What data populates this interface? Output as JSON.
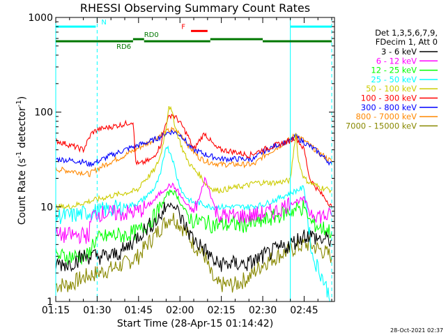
{
  "chart_data": {
    "type": "line",
    "title": "RHESSI Observing Summary Count Rates",
    "xlabel": "Start Time (28-Apr-15 01:14:42)",
    "ylabel_main": "Count Rate (s",
    "ylabel_sup1": "-1",
    "ylabel_mid": " detector",
    "ylabel_sup2": "-1",
    "ylabel_end": ")",
    "yscale": "log",
    "ylim": [
      1,
      1000
    ],
    "xlim_min": [
      0,
      101
    ],
    "y_ticks": [
      {
        "value": 1,
        "label": "1"
      },
      {
        "value": 10,
        "label": "10"
      },
      {
        "value": 100,
        "label": "100"
      },
      {
        "value": 1000,
        "label": "1000"
      }
    ],
    "x_ticks": [
      {
        "t": 0,
        "label": "01:15"
      },
      {
        "t": 15,
        "label": "01:30"
      },
      {
        "t": 30,
        "label": "01:45"
      },
      {
        "t": 45,
        "label": "02:00"
      },
      {
        "t": 60,
        "label": "02:15"
      },
      {
        "t": 75,
        "label": "02:30"
      },
      {
        "t": 90,
        "label": "02:45"
      }
    ],
    "legend_header": [
      "Det 1,3,5,6,7,9,",
      "FDecim 1, Att 0"
    ],
    "series": [
      {
        "name": "3 - 6 keV",
        "color": "#000000",
        "x": [
          0,
          5,
          10,
          15,
          20,
          25,
          30,
          33,
          36,
          38,
          40,
          42,
          44,
          46,
          48,
          50,
          52,
          54,
          56,
          58,
          60,
          65,
          70,
          75,
          80,
          85,
          90,
          92,
          96,
          100
        ],
        "y": [
          2.5,
          2.5,
          3,
          3,
          3,
          3.5,
          5,
          6,
          7,
          8,
          10,
          11,
          9,
          7,
          5.5,
          4.5,
          4,
          3.5,
          3,
          2.5,
          2.5,
          2.5,
          2.5,
          3,
          3.5,
          4,
          5,
          5,
          4.5,
          4.5
        ]
      },
      {
        "name": "6 - 12 keV",
        "color": "#ff00ff",
        "x": [
          0,
          12,
          13,
          15,
          20,
          25,
          30,
          33,
          36,
          38,
          40,
          42,
          44,
          46,
          48,
          50,
          52,
          54,
          56,
          58,
          60,
          65,
          70,
          75,
          80,
          85,
          90,
          92,
          96,
          100
        ],
        "y": [
          5,
          5,
          8,
          8.5,
          8.5,
          8.5,
          9,
          10,
          12,
          14,
          16,
          17,
          15,
          12,
          10,
          9,
          12,
          20,
          14,
          9,
          8,
          8,
          8,
          8.5,
          9,
          11,
          12,
          9,
          8,
          8
        ]
      },
      {
        "name": "12 - 25 keV",
        "color": "#00ff00",
        "x": [
          0,
          12,
          13,
          15,
          20,
          25,
          30,
          33,
          36,
          38,
          40,
          42,
          44,
          46,
          48,
          50,
          52,
          54,
          56,
          58,
          60,
          65,
          70,
          75,
          80,
          85,
          90,
          92,
          96,
          100
        ],
        "y": [
          3,
          3,
          4,
          4.5,
          5,
          5,
          5.5,
          6.5,
          8,
          10,
          13,
          15,
          13,
          10,
          8,
          7,
          7,
          7,
          6.5,
          6.5,
          6.5,
          6.5,
          6.5,
          7,
          8,
          9,
          10,
          7,
          6,
          5.5
        ]
      },
      {
        "name": "25 - 50 keV",
        "color": "#00ffff",
        "x": [
          0,
          5,
          10,
          15,
          20,
          25,
          30,
          33,
          36,
          38,
          40,
          42,
          44,
          46,
          48,
          50,
          52,
          54,
          56,
          58,
          60,
          65,
          70,
          75,
          80,
          85,
          90,
          91,
          92,
          93,
          96,
          100
        ],
        "y": [
          8,
          8,
          8.5,
          9,
          9.5,
          10,
          11,
          13,
          16,
          22,
          45,
          35,
          20,
          14,
          12,
          11,
          11,
          10.5,
          10,
          10,
          10,
          10,
          10,
          10.5,
          12,
          14,
          16,
          9,
          5,
          3,
          2,
          1
        ]
      },
      {
        "name": "50 - 100 keV",
        "color": "#cccc00",
        "x": [
          0,
          5,
          10,
          15,
          20,
          25,
          30,
          31,
          33,
          36,
          38,
          40,
          41,
          42,
          44,
          46,
          48,
          50,
          52,
          54,
          56,
          58,
          60,
          65,
          70,
          72,
          75,
          80,
          85,
          86,
          87,
          88,
          90,
          92,
          94,
          96,
          100
        ],
        "y": [
          10,
          10,
          11,
          12,
          13,
          14,
          15,
          18,
          20,
          25,
          35,
          70,
          120,
          100,
          60,
          40,
          30,
          25,
          22,
          18,
          16,
          15,
          15,
          16,
          17,
          18,
          18,
          18,
          19,
          35,
          60,
          30,
          20,
          18,
          17,
          16,
          15
        ]
      },
      {
        "name": "100 - 300 keV",
        "color": "#ff0000",
        "x": [
          0,
          5,
          10,
          13,
          15,
          18,
          20,
          25,
          28,
          29,
          30,
          35,
          38,
          40,
          42,
          44,
          46,
          48,
          50,
          52,
          54,
          56,
          58,
          60,
          65,
          70,
          75,
          80,
          85,
          87,
          90,
          92,
          95,
          98,
          100
        ],
        "y": [
          50,
          45,
          40,
          60,
          65,
          68,
          70,
          75,
          80,
          30,
          28,
          32,
          45,
          80,
          95,
          85,
          70,
          55,
          40,
          50,
          60,
          50,
          42,
          40,
          38,
          35,
          40,
          45,
          50,
          55,
          40,
          20,
          15,
          12,
          10
        ]
      },
      {
        "name": "300 - 800 keV",
        "color": "#0000ff",
        "x": [
          0,
          10,
          12,
          15,
          20,
          25,
          30,
          35,
          38,
          40,
          42,
          44,
          46,
          48,
          50,
          52,
          55,
          60,
          65,
          70,
          72,
          75,
          80,
          85,
          87,
          90,
          95,
          100
        ],
        "y": [
          32,
          30,
          28,
          30,
          35,
          40,
          45,
          50,
          55,
          60,
          62,
          60,
          55,
          45,
          40,
          38,
          35,
          32,
          32,
          32,
          32,
          38,
          45,
          50,
          55,
          48,
          38,
          28
        ]
      },
      {
        "name": "800 - 7000 keV",
        "color": "#ff8800",
        "x": [
          0,
          10,
          12,
          15,
          20,
          25,
          30,
          35,
          38,
          40,
          42,
          44,
          46,
          48,
          50,
          52,
          55,
          60,
          65,
          70,
          72,
          75,
          80,
          85,
          87,
          90,
          95,
          100
        ],
        "y": [
          25,
          23,
          22,
          25,
          30,
          35,
          42,
          50,
          58,
          62,
          65,
          62,
          55,
          45,
          38,
          33,
          30,
          28,
          28,
          28,
          28,
          34,
          42,
          52,
          58,
          50,
          38,
          30
        ]
      },
      {
        "name": "7000 - 15000 keV",
        "color": "#888800",
        "x": [
          0,
          5,
          10,
          15,
          20,
          25,
          30,
          33,
          36,
          38,
          40,
          42,
          44,
          46,
          48,
          50,
          52,
          54,
          56,
          58,
          60,
          65,
          70,
          75,
          80,
          85,
          90,
          92,
          96,
          100
        ],
        "y": [
          1.5,
          1.5,
          1.8,
          2,
          2.2,
          2.5,
          3,
          4,
          5,
          6,
          7,
          8,
          7,
          6,
          5,
          4,
          3.5,
          3,
          2,
          1.5,
          1.5,
          1.5,
          1.8,
          2.5,
          3,
          3.5,
          4,
          4,
          3.5,
          3
        ]
      }
    ],
    "annotations": [
      {
        "label": "N",
        "color": "#00ffff",
        "segments": [
          [
            0,
            14.5
          ],
          [
            85,
            100
          ]
        ],
        "y": 800,
        "label_t": 16.5
      },
      {
        "label": "RD6",
        "color": "#007700",
        "segments": [
          [
            0,
            28
          ],
          [
            32,
            56
          ],
          [
            75,
            100
          ]
        ],
        "y": 560,
        "label_t": 22
      },
      {
        "label": "RD0",
        "color": "#007700",
        "segments": [
          [
            28,
            32
          ],
          [
            56,
            75
          ]
        ],
        "y": 590,
        "label_t": 32
      },
      {
        "label": "F",
        "color": "#ff0000",
        "segments": [
          [
            49,
            55
          ]
        ],
        "y": 720,
        "label_t": 45.5
      }
    ],
    "vlines": [
      {
        "t": 0,
        "color": "#00ffff",
        "style": "solid"
      },
      {
        "t": 15,
        "color": "#00ffff",
        "style": "dashed"
      },
      {
        "t": 85,
        "color": "#00ffff",
        "style": "solid"
      },
      {
        "t": 100,
        "color": "#00ffff",
        "style": "dashed"
      }
    ],
    "grid": false,
    "legend_placement": "right"
  },
  "footer": {
    "timestamp": "28-Oct-2021 02:37"
  }
}
